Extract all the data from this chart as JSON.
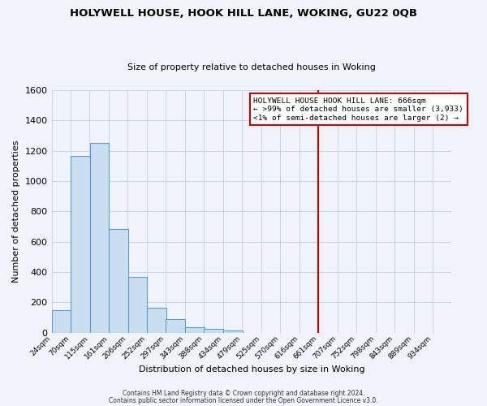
{
  "title": "HOLYWELL HOUSE, HOOK HILL LANE, WOKING, GU22 0QB",
  "subtitle": "Size of property relative to detached houses in Woking",
  "xlabel": "Distribution of detached houses by size in Woking",
  "ylabel": "Number of detached properties",
  "bar_left_edges": [
    24,
    70,
    115,
    161,
    206,
    252,
    297,
    343,
    388,
    434,
    479,
    525,
    570,
    616,
    661,
    707,
    752,
    798,
    843,
    889
  ],
  "bar_heights": [
    150,
    1165,
    1250,
    685,
    370,
    162,
    90,
    35,
    25,
    15,
    0,
    0,
    0,
    0,
    0,
    0,
    0,
    0,
    0,
    0
  ],
  "bin_width": 46,
  "tick_labels": [
    "24sqm",
    "70sqm",
    "115sqm",
    "161sqm",
    "206sqm",
    "252sqm",
    "297sqm",
    "343sqm",
    "388sqm",
    "434sqm",
    "479sqm",
    "525sqm",
    "570sqm",
    "616sqm",
    "661sqm",
    "707sqm",
    "752sqm",
    "798sqm",
    "843sqm",
    "889sqm",
    "934sqm"
  ],
  "bar_face_color": "#c9dff0",
  "bar_edge_color": "#5b9bd5",
  "background_color": "#f0f4fa",
  "grid_color": "#c8d4e8",
  "marker_x": 661,
  "marker_color": "#cc0000",
  "annotation_line1": "HOLYWELL HOUSE HOOK HILL LANE: 666sqm",
  "annotation_line2": "← >99% of detached houses are smaller (3,933)",
  "annotation_line3": "<1% of semi-detached houses are larger (2) →",
  "ylim": [
    0,
    1600
  ],
  "xlim_left": 24,
  "xlim_right": 980,
  "yticks": [
    0,
    200,
    400,
    600,
    800,
    1000,
    1200,
    1400,
    1600
  ],
  "footnote1": "Contains HM Land Registry data © Crown copyright and database right 2024.",
  "footnote2": "Contains public sector information licensed under the Open Government Licence v3.0."
}
